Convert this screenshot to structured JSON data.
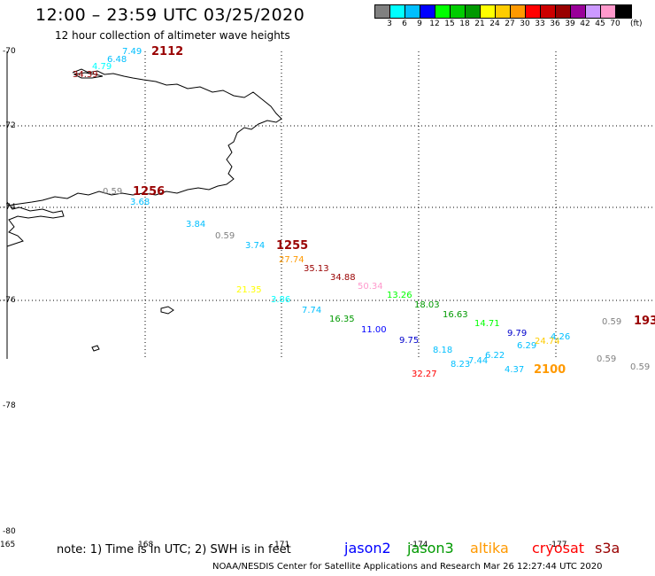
{
  "header": {
    "title": "12:00 – 23:59 UTC 03/25/2020",
    "subtitle": "12 hour collection of altimeter wave heights"
  },
  "colorbar": {
    "colors": [
      "#808080",
      "#00ffff",
      "#00bfff",
      "#0000ff",
      "#00ff00",
      "#00cc00",
      "#009900",
      "#ffff00",
      "#ffcc00",
      "#ff9900",
      "#ff0000",
      "#cc0000",
      "#990000",
      "#990099",
      "#cc99ff",
      "#ff99cc",
      "#000000"
    ],
    "ticks": [
      "3",
      "6",
      "9",
      "12",
      "15",
      "18",
      "21",
      "24",
      "27",
      "30",
      "33",
      "36",
      "39",
      "42",
      "45",
      "70"
    ],
    "unit": "(ft)"
  },
  "map": {
    "lat_labels": [
      "-70",
      "-72",
      "-74",
      "-76",
      "-78",
      "-80"
    ],
    "lon_labels": [
      "165",
      "168",
      "171",
      "-174",
      "-177"
    ],
    "swh_values": [
      {
        "text": "7.49",
        "color": "#00bfff"
      },
      {
        "text": "6.48",
        "color": "#00bfff"
      },
      {
        "text": "4.79",
        "color": "#00ffff"
      },
      {
        "text": "34.39",
        "color": "#990000"
      },
      {
        "text": "0.59",
        "color": "#808080"
      },
      {
        "text": "3.68",
        "color": "#00bfff"
      },
      {
        "text": "3.84",
        "color": "#00bfff"
      },
      {
        "text": "0.59",
        "color": "#808080"
      },
      {
        "text": "3.74",
        "color": "#00bfff"
      },
      {
        "text": "27.74",
        "color": "#ff9900"
      },
      {
        "text": "35.13",
        "color": "#990000"
      },
      {
        "text": "34.88",
        "color": "#990000"
      },
      {
        "text": "50.34",
        "color": "#ff99cc"
      },
      {
        "text": "21.35",
        "color": "#ffff00"
      },
      {
        "text": "3.86",
        "color": "#00ffff"
      },
      {
        "text": "13.26",
        "color": "#00ff00"
      },
      {
        "text": "7.74",
        "color": "#00bfff"
      },
      {
        "text": "16.35",
        "color": "#009900"
      },
      {
        "text": "18.03",
        "color": "#009900"
      },
      {
        "text": "16.63",
        "color": "#009900"
      },
      {
        "text": "14.71",
        "color": "#00ff00"
      },
      {
        "text": "11.00",
        "color": "#0000ff"
      },
      {
        "text": "9.75",
        "color": "#0000cc"
      },
      {
        "text": "9.79",
        "color": "#0000cc"
      },
      {
        "text": "0.59",
        "color": "#808080"
      },
      {
        "text": "6.29",
        "color": "#00bfff"
      },
      {
        "text": "24.74",
        "color": "#ffcc00"
      },
      {
        "text": "4.26",
        "color": "#00bfff"
      },
      {
        "text": "8.18",
        "color": "#00bfff"
      },
      {
        "text": "6.22",
        "color": "#00bfff"
      },
      {
        "text": "7.44",
        "color": "#00bfff"
      },
      {
        "text": "8.23",
        "color": "#00bfff"
      },
      {
        "text": "4.37",
        "color": "#00bfff"
      },
      {
        "text": "0.59",
        "color": "#808080"
      },
      {
        "text": "0.59",
        "color": "#808080"
      },
      {
        "text": "32.27",
        "color": "#ff0000"
      }
    ],
    "time_tags": [
      {
        "text": "2112",
        "color": "#990000"
      },
      {
        "text": "1256",
        "color": "#990000"
      },
      {
        "text": "1255",
        "color": "#990000"
      },
      {
        "text": "2100",
        "color": "#ff9900"
      },
      {
        "text": "193",
        "color": "#990000"
      }
    ]
  },
  "note": "note: 1) Time is in UTC; 2) SWH is in feet",
  "legend": [
    {
      "label": "jason2",
      "color": "#0000ff"
    },
    {
      "label": "jason3",
      "color": "#009900"
    },
    {
      "label": "altika",
      "color": "#ff9900"
    },
    {
      "label": "cryosat",
      "color": "#ff0000"
    },
    {
      "label": "s3a",
      "color": "#990000"
    }
  ],
  "footer": "NOAA/NESDIS Center for Satellite Applications and Research    Mar 26 12:27:44 UTC 2020"
}
